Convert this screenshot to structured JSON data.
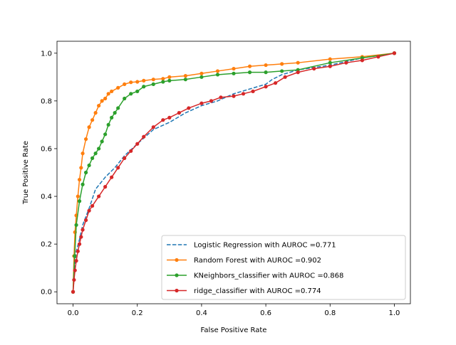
{
  "chart_data": {
    "type": "line",
    "title": "",
    "xlabel": "False Positive Rate",
    "ylabel": "True Positive Rate",
    "xlim": [
      -0.05,
      1.05
    ],
    "ylim": [
      -0.05,
      1.05
    ],
    "xticks": [
      0.0,
      0.2,
      0.4,
      0.6,
      0.8,
      1.0
    ],
    "yticks": [
      0.0,
      0.2,
      0.4,
      0.6,
      0.8,
      1.0
    ],
    "xtick_labels": [
      "0.0",
      "0.2",
      "0.4",
      "0.6",
      "0.8",
      "1.0"
    ],
    "ytick_labels": [
      "0.0",
      "0.2",
      "0.4",
      "0.6",
      "0.8",
      "1.0"
    ],
    "grid": false,
    "legend_position": "lower-right",
    "series": [
      {
        "name": "Logistic Regression with AUROC =0.771",
        "color": "#1f77b4",
        "line_style": "dashed",
        "marker": "none",
        "x": [
          0.0,
          0.005,
          0.01,
          0.02,
          0.03,
          0.05,
          0.07,
          0.1,
          0.13,
          0.16,
          0.2,
          0.25,
          0.3,
          0.35,
          0.4,
          0.45,
          0.5,
          0.55,
          0.6,
          0.62,
          0.65,
          0.7,
          0.8,
          0.9,
          1.0
        ],
        "y": [
          0.0,
          0.1,
          0.17,
          0.22,
          0.28,
          0.35,
          0.43,
          0.48,
          0.52,
          0.57,
          0.62,
          0.68,
          0.71,
          0.75,
          0.78,
          0.8,
          0.83,
          0.85,
          0.87,
          0.89,
          0.91,
          0.93,
          0.95,
          0.98,
          1.0
        ]
      },
      {
        "name": "Random Forest with AUROC =0.902",
        "color": "#ff7f0e",
        "line_style": "solid",
        "marker": "dot",
        "x": [
          0.0,
          0.003,
          0.006,
          0.01,
          0.015,
          0.02,
          0.025,
          0.03,
          0.04,
          0.05,
          0.06,
          0.07,
          0.08,
          0.09,
          0.1,
          0.11,
          0.12,
          0.14,
          0.16,
          0.18,
          0.2,
          0.22,
          0.25,
          0.28,
          0.3,
          0.35,
          0.4,
          0.45,
          0.5,
          0.55,
          0.6,
          0.65,
          0.7,
          0.8,
          0.9,
          1.0
        ],
        "y": [
          0.0,
          0.15,
          0.25,
          0.32,
          0.4,
          0.47,
          0.52,
          0.58,
          0.64,
          0.69,
          0.72,
          0.75,
          0.78,
          0.8,
          0.81,
          0.83,
          0.84,
          0.855,
          0.87,
          0.878,
          0.88,
          0.885,
          0.89,
          0.893,
          0.9,
          0.905,
          0.915,
          0.925,
          0.935,
          0.945,
          0.95,
          0.955,
          0.96,
          0.975,
          0.985,
          1.0
        ]
      },
      {
        "name": "KNeighbors_classifier with AUROC =0.868",
        "color": "#2ca02c",
        "line_style": "solid",
        "marker": "dot",
        "x": [
          0.0,
          0.005,
          0.01,
          0.02,
          0.03,
          0.04,
          0.05,
          0.06,
          0.07,
          0.08,
          0.09,
          0.1,
          0.11,
          0.12,
          0.13,
          0.14,
          0.16,
          0.18,
          0.2,
          0.22,
          0.25,
          0.28,
          0.3,
          0.35,
          0.4,
          0.45,
          0.5,
          0.55,
          0.6,
          0.65,
          0.7,
          0.8,
          0.9,
          1.0
        ],
        "y": [
          0.0,
          0.15,
          0.28,
          0.38,
          0.45,
          0.5,
          0.53,
          0.56,
          0.58,
          0.6,
          0.63,
          0.66,
          0.7,
          0.73,
          0.75,
          0.77,
          0.81,
          0.83,
          0.84,
          0.86,
          0.87,
          0.88,
          0.885,
          0.89,
          0.9,
          0.91,
          0.915,
          0.92,
          0.92,
          0.925,
          0.93,
          0.96,
          0.98,
          1.0
        ]
      },
      {
        "name": "ridge_classifier with AUROC =0.774",
        "color": "#d62728",
        "line_style": "solid",
        "marker": "dot",
        "x": [
          0.0,
          0.003,
          0.006,
          0.01,
          0.015,
          0.02,
          0.025,
          0.03,
          0.04,
          0.05,
          0.06,
          0.08,
          0.1,
          0.12,
          0.14,
          0.16,
          0.18,
          0.2,
          0.22,
          0.25,
          0.28,
          0.3,
          0.33,
          0.36,
          0.4,
          0.43,
          0.46,
          0.5,
          0.53,
          0.56,
          0.6,
          0.63,
          0.66,
          0.7,
          0.75,
          0.8,
          0.85,
          0.9,
          0.95,
          1.0
        ],
        "y": [
          0.0,
          0.05,
          0.09,
          0.13,
          0.17,
          0.2,
          0.23,
          0.26,
          0.3,
          0.34,
          0.36,
          0.4,
          0.44,
          0.48,
          0.52,
          0.56,
          0.59,
          0.62,
          0.65,
          0.69,
          0.72,
          0.73,
          0.75,
          0.77,
          0.79,
          0.8,
          0.815,
          0.82,
          0.83,
          0.84,
          0.86,
          0.875,
          0.9,
          0.92,
          0.935,
          0.945,
          0.96,
          0.97,
          0.985,
          1.0
        ]
      }
    ]
  }
}
